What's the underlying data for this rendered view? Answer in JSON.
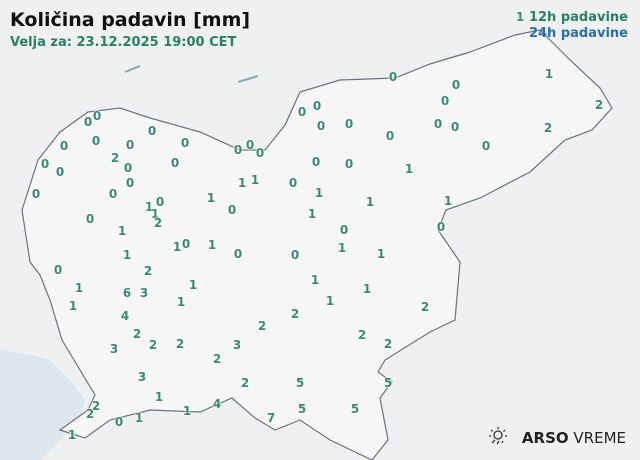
{
  "title": "Količina padavin [mm]",
  "subtitle": "Velja za: 23.12.2025 19:00 CET",
  "legend": {
    "label_12h": "12h padavine",
    "label_24h": "24h padavine",
    "color_12h": "#2a8060",
    "color_24h": "#2a6fa8"
  },
  "brand": {
    "icon": "sun-rain-icon",
    "bold": "ARSO",
    "light": "VREME"
  },
  "precipitation_12h_mm": [
    0,
    0,
    0,
    0,
    0,
    0,
    2,
    0,
    0,
    0,
    0,
    0,
    0,
    0,
    0,
    0,
    0,
    0,
    1,
    1,
    1,
    0,
    1,
    0,
    1,
    2,
    0,
    1,
    1,
    0,
    1,
    0,
    1,
    0,
    1,
    1,
    6,
    3,
    2,
    1,
    1,
    4,
    2,
    2,
    2,
    3,
    2,
    3,
    2,
    3,
    1,
    1,
    4,
    2,
    2,
    2,
    0,
    1,
    1,
    7,
    0,
    0,
    0,
    0,
    0,
    0,
    0,
    0,
    0,
    0,
    0,
    0,
    0,
    1,
    0,
    1,
    1,
    1,
    1,
    0,
    0,
    1,
    1,
    0,
    1,
    2,
    2,
    1,
    1,
    1,
    1,
    2,
    2,
    2,
    2,
    5,
    5,
    5,
    5
  ]
}
